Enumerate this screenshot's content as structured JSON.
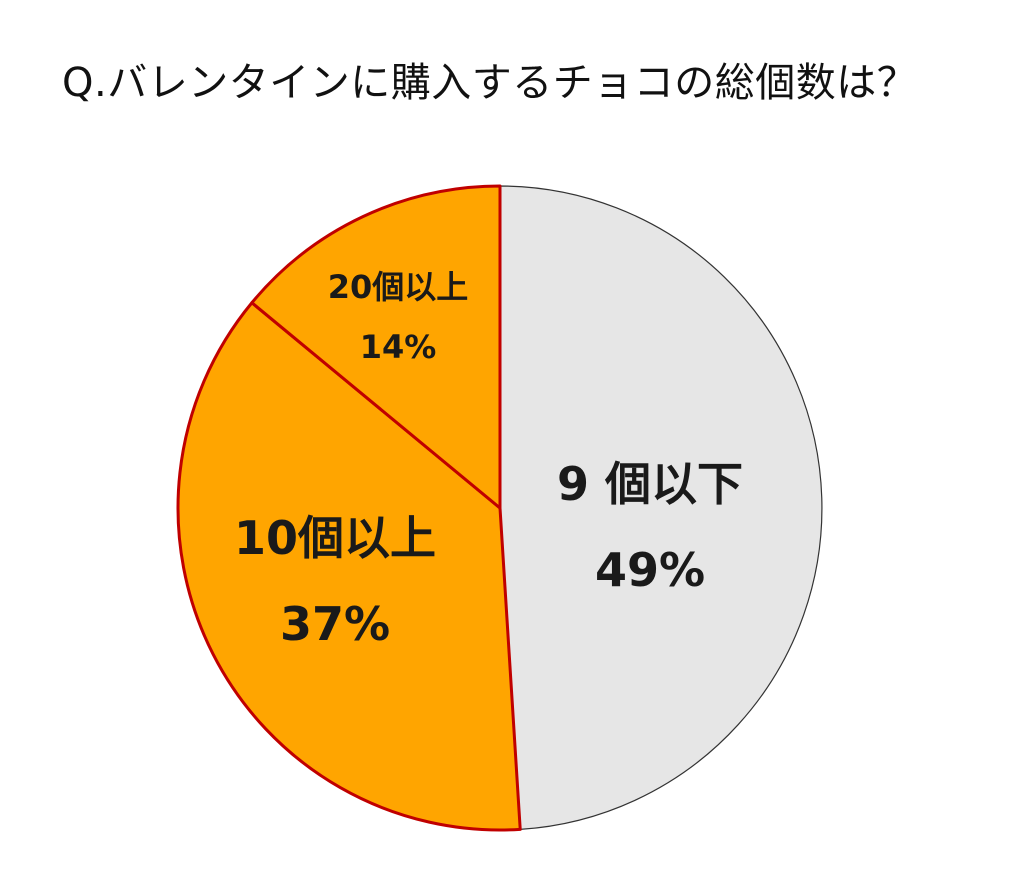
{
  "chart_data": {
    "type": "pie",
    "title": "Q.バレンタインに購入するチョコの総個数は？",
    "slices": [
      {
        "label": "9 個以下",
        "value": 49,
        "value_label": "49%",
        "color": "#e6e6e6"
      },
      {
        "label": "10個以上",
        "value": 37,
        "value_label": "37%",
        "color": "#ffa500"
      },
      {
        "label": "20個以上",
        "value": 14,
        "value_label": "14%",
        "color": "#ffa500"
      }
    ],
    "colors": {
      "highlight_border": "#c00000",
      "neutral_border": "#333333"
    }
  }
}
